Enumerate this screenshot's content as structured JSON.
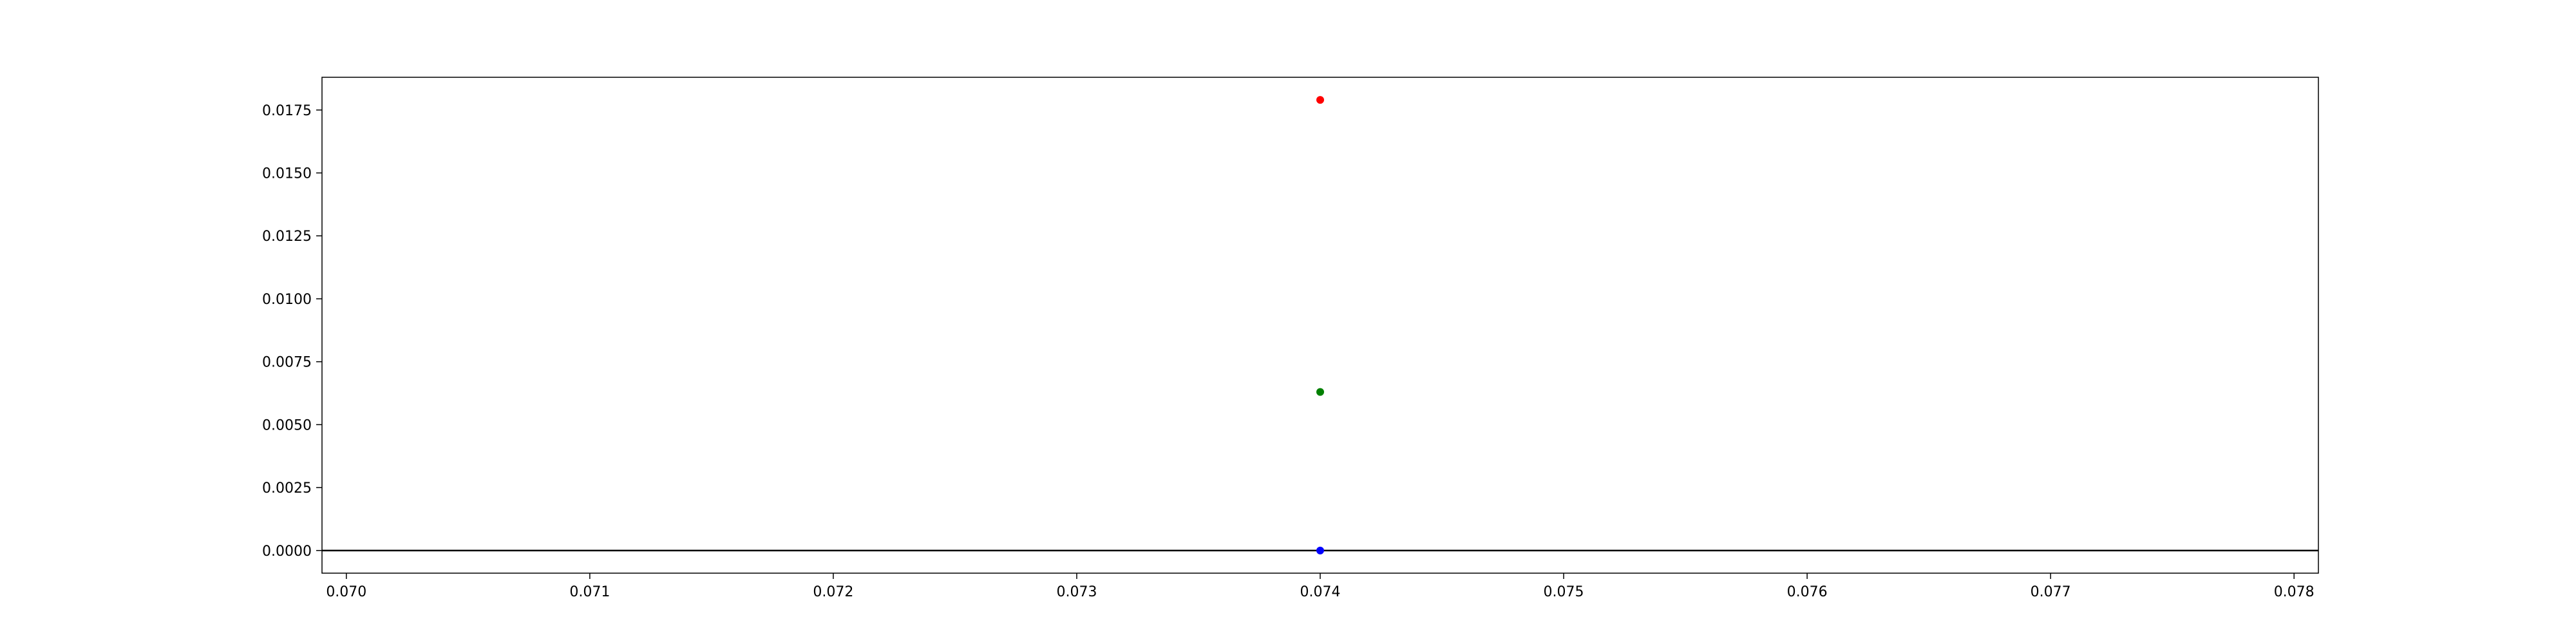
{
  "chart_data": {
    "type": "scatter",
    "title": "",
    "xlabel": "",
    "ylabel": "",
    "xlim": [
      0.0699,
      0.0781
    ],
    "ylim": [
      -0.0009,
      0.0188
    ],
    "xticks": [
      0.07,
      0.071,
      0.072,
      0.073,
      0.074,
      0.075,
      0.076,
      0.077,
      0.078
    ],
    "xtick_labels": [
      "0.070",
      "0.071",
      "0.072",
      "0.073",
      "0.074",
      "0.075",
      "0.076",
      "0.077",
      "0.078"
    ],
    "yticks": [
      0.0,
      0.0025,
      0.005,
      0.0075,
      0.01,
      0.0125,
      0.015,
      0.0175
    ],
    "ytick_labels": [
      "0.0000",
      "0.0025",
      "0.0050",
      "0.0075",
      "0.0100",
      "0.0125",
      "0.0150",
      "0.0175"
    ],
    "grid": false,
    "legend": false,
    "hlines": [
      {
        "y": 0.0,
        "color": "#000000"
      }
    ],
    "points": [
      {
        "x": 0.074,
        "y": 0.0179,
        "color": "#ff0000"
      },
      {
        "x": 0.074,
        "y": 0.0063,
        "color": "#008000"
      },
      {
        "x": 0.074,
        "y": 0.0,
        "color": "#0000ff"
      }
    ]
  }
}
